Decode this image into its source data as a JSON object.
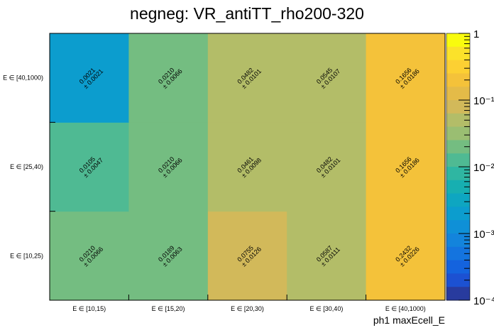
{
  "chart_data": {
    "type": "heatmap",
    "title": "negneg: VR_antiTT_rho200-320",
    "xlabel": "ph1 maxEcell_E",
    "ylabel": "",
    "x_categories": [
      "E ∈ [10,15)",
      "E ∈ [15,20)",
      "E ∈ [20,30)",
      "E ∈ [30,40)",
      "E ∈ [40,1000)"
    ],
    "y_categories": [
      "E ∈ [10,25)",
      "E ∈ [25,40)",
      "E ∈ [40,1000)"
    ],
    "values": [
      [
        0.021,
        0.0189,
        0.0755,
        0.0587,
        0.2432
      ],
      [
        0.0105,
        0.021,
        0.0461,
        0.0482,
        0.1656
      ],
      [
        0.0021,
        0.021,
        0.0482,
        0.0545,
        0.1656
      ]
    ],
    "errors": [
      [
        0.0066,
        0.0063,
        0.0126,
        0.0111,
        0.0226
      ],
      [
        0.0047,
        0.0066,
        0.0098,
        0.0101,
        0.0186
      ],
      [
        0.0021,
        0.0066,
        0.0101,
        0.0107,
        0.0186
      ]
    ],
    "colorbar": {
      "scale": "log",
      "range": [
        0.0001,
        1
      ],
      "tick_labels": [
        "1",
        "10⁻¹",
        "10⁻²",
        "10⁻³",
        "10⁻⁴"
      ],
      "palette_top_to_bottom": [
        "#f9fb0e",
        "#fbe22a",
        "#fcd033",
        "#f4c23a",
        "#e4bb48",
        "#d2b95a",
        "#b3bd68",
        "#9abe72",
        "#74bd81",
        "#4fba93",
        "#2fb6a2",
        "#17afb1",
        "#0ea6c1",
        "#0c9dce",
        "#0f90d7",
        "#1384dc",
        "#1474df",
        "#1463de",
        "#1c51d2",
        "#283b9e"
      ]
    }
  }
}
